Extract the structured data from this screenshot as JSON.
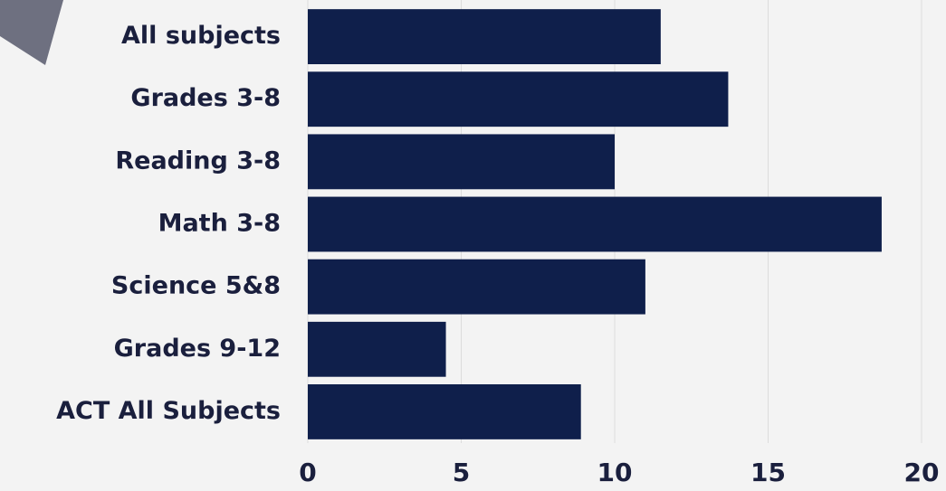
{
  "chart_data": {
    "type": "bar",
    "categories": [
      "All subjects",
      "Grades 3-8",
      "Reading 3-8",
      "Math 3-8",
      "Science 5&8",
      "Grades 9-12",
      "ACT All Subjects"
    ],
    "values": [
      11.5,
      13.7,
      10.0,
      18.7,
      11.0,
      4.5,
      8.9
    ],
    "color": "#0f1f4b",
    "xlim": [
      0,
      20
    ],
    "xticks": [
      0,
      5,
      10,
      15,
      20
    ],
    "grid": true
  }
}
